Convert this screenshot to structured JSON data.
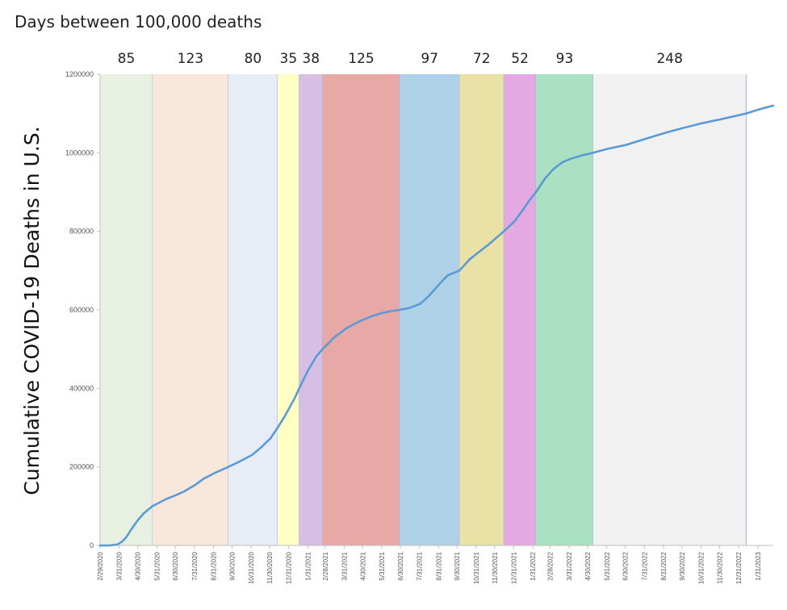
{
  "chart_data": {
    "type": "area",
    "title": "Days between 100,000 deaths",
    "ylabel": "Cumulative COVID-19 Deaths in U.S.",
    "xlabel": "",
    "ylim": [
      0,
      1200000
    ],
    "y_ticks": [
      "0",
      "200000",
      "400000",
      "600000",
      "800000",
      "1000000",
      "1200000"
    ],
    "x_ticks": [
      "2/29/2020",
      "3/31/2020",
      "4/30/2020",
      "5/31/2020",
      "6/30/2020",
      "7/31/2020",
      "8/31/2020",
      "9/30/2020",
      "10/31/2020",
      "11/30/2020",
      "12/31/2020",
      "1/31/2021",
      "2/28/2021",
      "3/31/2021",
      "4/30/2021",
      "5/31/2021",
      "6/30/2021",
      "7/31/2021",
      "8/31/2021",
      "9/30/2021",
      "10/31/2021",
      "11/30/2021",
      "12/31/2021",
      "1/31/2022",
      "2/28/2022",
      "3/31/2022",
      "4/30/2022",
      "5/31/2022",
      "6/30/2022",
      "7/31/2022",
      "8/31/2022",
      "9/30/2022",
      "10/31/2022",
      "11/30/2022",
      "12/31/2022",
      "1/31/2023"
    ],
    "bands": [
      {
        "label": "85",
        "start": "2020-02-29",
        "end": "2020-05-24",
        "color": "#e8f1e1"
      },
      {
        "label": "123",
        "start": "2020-05-24",
        "end": "2020-09-24",
        "color": "#fae7dc"
      },
      {
        "label": "80",
        "start": "2020-09-24",
        "end": "2020-12-13",
        "color": "#e6edf7"
      },
      {
        "label": "35",
        "start": "2020-12-13",
        "end": "2021-01-17",
        "color": "#ffffc4"
      },
      {
        "label": "38",
        "start": "2021-01-17",
        "end": "2021-02-24",
        "color": "#d6bfe2"
      },
      {
        "label": "125",
        "start": "2021-02-24",
        "end": "2021-06-29",
        "color": "#e8a8a6"
      },
      {
        "label": "97",
        "start": "2021-06-29",
        "end": "2021-10-04",
        "color": "#aed1e8"
      },
      {
        "label": "72",
        "start": "2021-10-04",
        "end": "2021-12-15",
        "color": "#e9e1a6"
      },
      {
        "label": "52",
        "start": "2021-12-15",
        "end": "2022-02-05",
        "color": "#e5a9e1"
      },
      {
        "label": "93",
        "start": "2022-02-05",
        "end": "2022-05-09",
        "color": "#abe1c3"
      },
      {
        "label": "248",
        "start": "2022-05-09",
        "end": "2023-01-12",
        "color": "#f1f1f1"
      }
    ],
    "series": [
      {
        "color": "#5b9bd5",
        "points": [
          [
            "2020-02-29",
            0
          ],
          [
            "2020-03-15",
            100
          ],
          [
            "2020-03-28",
            2500
          ],
          [
            "2020-04-05",
            10000
          ],
          [
            "2020-04-12",
            22000
          ],
          [
            "2020-04-20",
            42000
          ],
          [
            "2020-04-30",
            64000
          ],
          [
            "2020-05-10",
            82000
          ],
          [
            "2020-05-24",
            100000
          ],
          [
            "2020-06-15",
            118000
          ],
          [
            "2020-07-01",
            128000
          ],
          [
            "2020-07-15",
            138000
          ],
          [
            "2020-08-01",
            154000
          ],
          [
            "2020-08-15",
            170000
          ],
          [
            "2020-09-01",
            184000
          ],
          [
            "2020-09-24",
            200000
          ],
          [
            "2020-10-15",
            216000
          ],
          [
            "2020-11-01",
            230000
          ],
          [
            "2020-11-15",
            248000
          ],
          [
            "2020-12-01",
            272000
          ],
          [
            "2020-12-13",
            300000
          ],
          [
            "2020-12-25",
            330000
          ],
          [
            "2021-01-10",
            376000
          ],
          [
            "2021-01-17",
            400000
          ],
          [
            "2021-01-31",
            445000
          ],
          [
            "2021-02-14",
            482000
          ],
          [
            "2021-02-24",
            500000
          ],
          [
            "2021-03-15",
            530000
          ],
          [
            "2021-04-01",
            550000
          ],
          [
            "2021-04-15",
            563000
          ],
          [
            "2021-05-01",
            575000
          ],
          [
            "2021-05-15",
            584000
          ],
          [
            "2021-06-01",
            592000
          ],
          [
            "2021-06-15",
            597000
          ],
          [
            "2021-06-29",
            600000
          ],
          [
            "2021-07-15",
            605000
          ],
          [
            "2021-08-01",
            615000
          ],
          [
            "2021-08-15",
            635000
          ],
          [
            "2021-09-01",
            665000
          ],
          [
            "2021-09-15",
            688000
          ],
          [
            "2021-10-04",
            700000
          ],
          [
            "2021-10-20",
            728000
          ],
          [
            "2021-11-05",
            748000
          ],
          [
            "2021-11-20",
            766000
          ],
          [
            "2021-12-15",
            800000
          ],
          [
            "2022-01-01",
            825000
          ],
          [
            "2022-01-15",
            855000
          ],
          [
            "2022-01-25",
            878000
          ],
          [
            "2022-02-05",
            900000
          ],
          [
            "2022-02-20",
            935000
          ],
          [
            "2022-03-05",
            958000
          ],
          [
            "2022-03-20",
            976000
          ],
          [
            "2022-04-05",
            986000
          ],
          [
            "2022-04-20",
            993000
          ],
          [
            "2022-05-09",
            1000000
          ],
          [
            "2022-06-01",
            1010000
          ],
          [
            "2022-07-01",
            1020000
          ],
          [
            "2022-08-01",
            1035000
          ],
          [
            "2022-09-01",
            1050000
          ],
          [
            "2022-10-01",
            1063000
          ],
          [
            "2022-11-01",
            1075000
          ],
          [
            "2022-12-01",
            1085000
          ],
          [
            "2023-01-12",
            1100000
          ],
          [
            "2023-02-01",
            1110000
          ],
          [
            "2023-02-25",
            1120000
          ]
        ]
      }
    ],
    "grid": false
  }
}
